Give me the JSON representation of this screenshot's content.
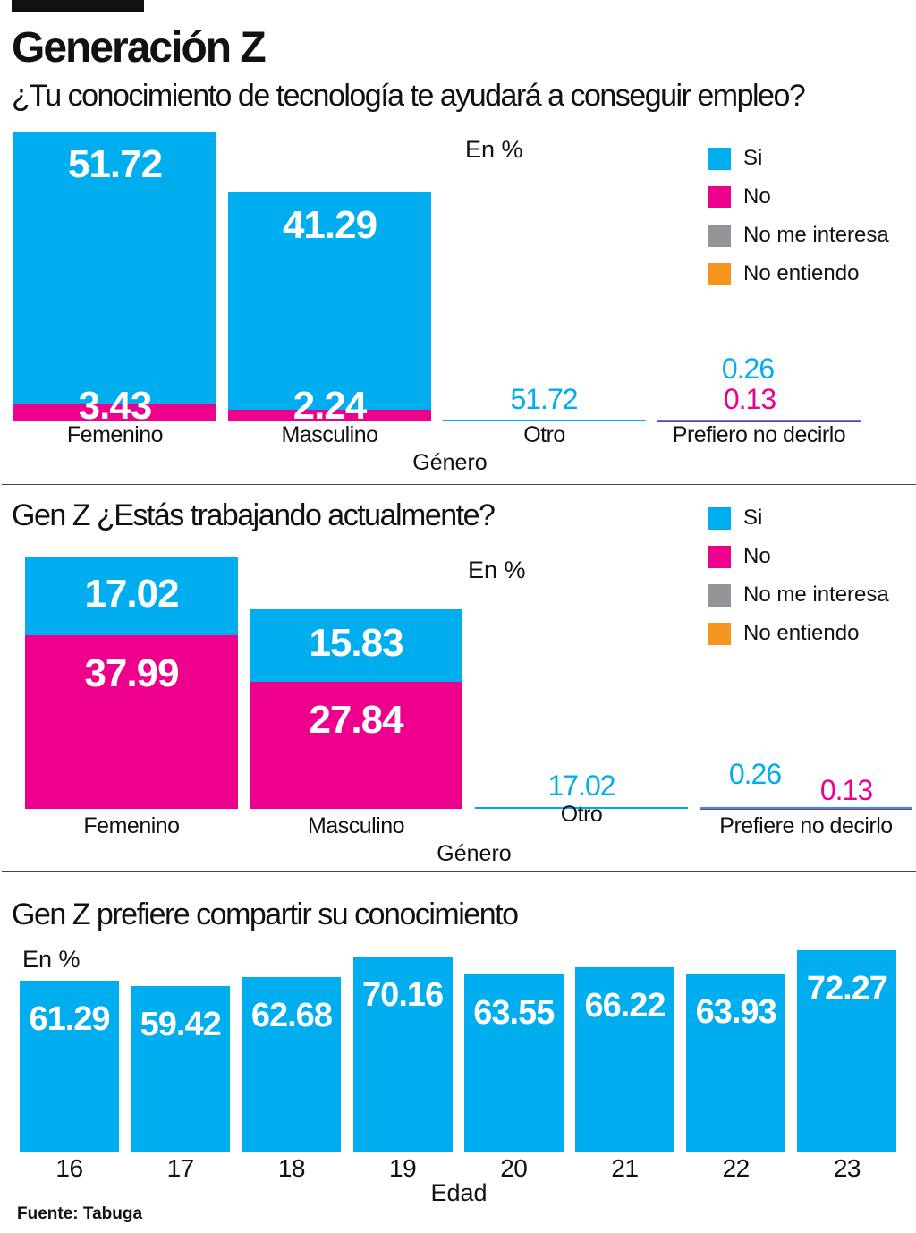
{
  "header": {
    "title": "Generación Z"
  },
  "colors": {
    "si": "#00aeef",
    "no": "#ec008c",
    "no_me_interesa": "#939598",
    "no_entiendo": "#f7941d"
  },
  "source": "Fuente:  Tabuga",
  "chart_data": [
    {
      "type": "bar",
      "stacked": true,
      "title": "¿Tu conocimiento de tecnología te ayudará a conseguir empleo?",
      "unit_label": "En %",
      "xlabel": "Género",
      "categories": [
        "Femenino",
        "Masculino",
        "Otro",
        "Prefiero no decirlo"
      ],
      "legend": [
        "Si",
        "No",
        "No me interesa",
        "No entiendo"
      ],
      "legend_position": "top-right",
      "series": [
        {
          "name": "Si",
          "values": [
            51.72,
            41.29,
            0.13,
            0.26
          ]
        },
        {
          "name": "No",
          "values": [
            3.43,
            2.24,
            null,
            0.13
          ]
        }
      ]
    },
    {
      "type": "bar",
      "stacked": true,
      "title": "Gen Z ¿Estás trabajando actualmente?",
      "unit_label": "En %",
      "xlabel": "Género",
      "categories": [
        "Femenino",
        "Masculino",
        "Otro",
        "Prefiere no decirlo"
      ],
      "legend": [
        "Si",
        "No",
        "No me interesa",
        "No entiendo"
      ],
      "legend_position": "top-right",
      "series": [
        {
          "name": "Si",
          "values": [
            17.02,
            15.83,
            0.13,
            0.26
          ]
        },
        {
          "name": "No",
          "values": [
            37.99,
            27.84,
            null,
            0.13
          ]
        }
      ]
    },
    {
      "type": "bar",
      "title": "Gen Z prefiere compartir su conocimiento",
      "unit_label": "En %",
      "xlabel": "Edad",
      "categories": [
        "16",
        "17",
        "18",
        "19",
        "20",
        "21",
        "22",
        "23"
      ],
      "values": [
        61.29,
        59.42,
        62.68,
        70.16,
        63.55,
        66.22,
        63.93,
        72.27
      ]
    }
  ]
}
